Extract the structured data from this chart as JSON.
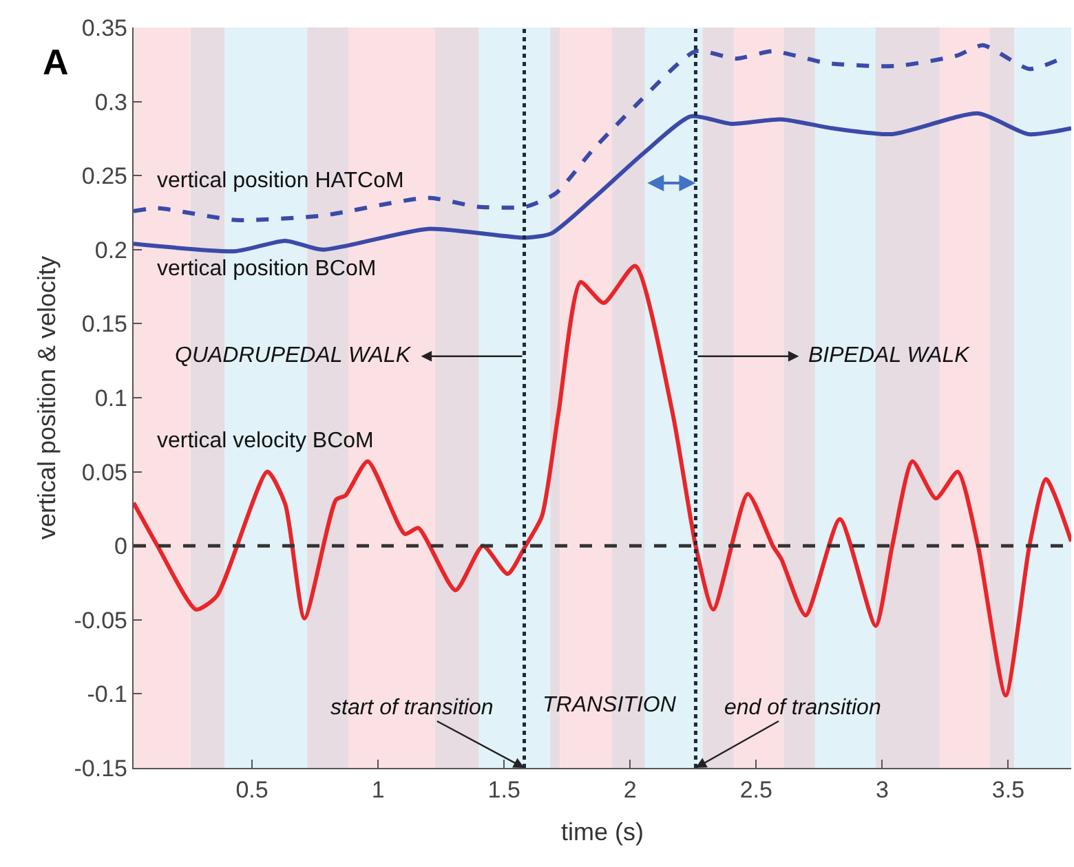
{
  "chart_data": {
    "type": "line",
    "xlabel": "time (s)",
    "ylabel": "vertical position & velocity",
    "xlim": [
      0.03,
      3.75
    ],
    "ylim": [
      -0.15,
      0.35
    ],
    "xticks": [
      0.5,
      1,
      1.5,
      2,
      2.5,
      3,
      3.5
    ],
    "yticks": [
      -0.15,
      -0.1,
      -0.05,
      0,
      0.05,
      0.1,
      0.15,
      0.2,
      0.25,
      0.3,
      0.35
    ],
    "series": [
      {
        "name": "vertical position HATCoM",
        "color": "#3b4aa8",
        "line_style": "dashed",
        "x": [
          0.03,
          0.125,
          0.436,
          0.779,
          1.198,
          1.394,
          1.585,
          1.705,
          1.85,
          2.02,
          2.26,
          2.42,
          2.566,
          2.78,
          3.055,
          3.295,
          3.4,
          3.584,
          3.71
        ],
        "values": [
          0.226,
          0.228,
          0.22,
          0.223,
          0.235,
          0.229,
          0.229,
          0.238,
          0.267,
          0.297,
          0.334,
          0.329,
          0.334,
          0.326,
          0.324,
          0.331,
          0.338,
          0.322,
          0.329
        ]
      },
      {
        "name": "vertical position BCoM",
        "color": "#3b4aa8",
        "line_style": "solid",
        "x": [
          0.03,
          0.436,
          0.632,
          0.779,
          1.198,
          1.585,
          1.688,
          1.85,
          2.059,
          2.24,
          2.4,
          2.6,
          2.8,
          3.04,
          3.38,
          3.58,
          3.75
        ],
        "values": [
          0.204,
          0.199,
          0.206,
          0.2,
          0.214,
          0.208,
          0.211,
          0.234,
          0.266,
          0.29,
          0.285,
          0.288,
          0.282,
          0.278,
          0.292,
          0.278,
          0.282
        ]
      },
      {
        "name": "vertical velocity BCoM",
        "color": "#e8262a",
        "line_style": "solid",
        "x": [
          0.03,
          0.125,
          0.278,
          0.36,
          0.561,
          0.632,
          0.708,
          0.833,
          0.871,
          0.959,
          1.106,
          1.16,
          1.307,
          1.416,
          1.514,
          1.585,
          1.65,
          1.716,
          1.803,
          1.895,
          2.02,
          2.168,
          2.26,
          2.33,
          2.467,
          2.566,
          2.6,
          2.696,
          2.832,
          2.974,
          3.04,
          3.12,
          3.213,
          3.3,
          3.38,
          3.49,
          3.584,
          3.65,
          3.75
        ],
        "values": [
          0.029,
          0,
          -0.043,
          -0.034,
          0.05,
          0.028,
          -0.049,
          0.031,
          0.034,
          0.057,
          0.008,
          0.012,
          -0.03,
          0,
          -0.019,
          0,
          0.02,
          0.09,
          0.178,
          0.164,
          0.189,
          0.09,
          0,
          -0.043,
          0.035,
          0,
          -0.009,
          -0.047,
          0.018,
          -0.054,
          0,
          0.057,
          0.032,
          0.05,
          0,
          -0.101,
          0,
          0.045,
          0.003
        ]
      }
    ],
    "ref_lines": [
      {
        "axis": "x",
        "value": 1.58,
        "color": "#1e2b3a",
        "line_style": "dotted"
      },
      {
        "axis": "x",
        "value": 2.26,
        "color": "#1e2b3a",
        "line_style": "dotted"
      },
      {
        "axis": "y",
        "value": 0,
        "color": "#333333",
        "line_style": "dashed"
      }
    ],
    "bands": [
      {
        "axis": "x",
        "from": 0.03,
        "to": 0.256,
        "color": "#fbe1e4"
      },
      {
        "axis": "x",
        "from": 0.256,
        "to": 0.392,
        "color": "#e6dce2"
      },
      {
        "axis": "x",
        "from": 0.392,
        "to": 0.719,
        "color": "#e1f2f8"
      },
      {
        "axis": "x",
        "from": 0.719,
        "to": 0.882,
        "color": "#e6dce2"
      },
      {
        "axis": "x",
        "from": 0.882,
        "to": 1.225,
        "color": "#fbe1e4"
      },
      {
        "axis": "x",
        "from": 1.225,
        "to": 1.4,
        "color": "#e6dce2"
      },
      {
        "axis": "x",
        "from": 1.4,
        "to": 1.683,
        "color": "#e1f2f8"
      },
      {
        "axis": "x",
        "from": 1.683,
        "to": 1.721,
        "color": "#e6dce2"
      },
      {
        "axis": "x",
        "from": 1.721,
        "to": 1.928,
        "color": "#fbe1e4"
      },
      {
        "axis": "x",
        "from": 1.928,
        "to": 2.059,
        "color": "#e6dce2"
      },
      {
        "axis": "x",
        "from": 2.059,
        "to": 2.288,
        "color": "#e1f2f8"
      },
      {
        "axis": "x",
        "from": 2.288,
        "to": 2.413,
        "color": "#e6dce2"
      },
      {
        "axis": "x",
        "from": 2.413,
        "to": 2.609,
        "color": "#fbe1e4"
      },
      {
        "axis": "x",
        "from": 2.609,
        "to": 2.734,
        "color": "#e6dce2"
      },
      {
        "axis": "x",
        "from": 2.734,
        "to": 2.974,
        "color": "#e1f2f8"
      },
      {
        "axis": "x",
        "from": 2.974,
        "to": 3.23,
        "color": "#e6dce2"
      },
      {
        "axis": "x",
        "from": 3.23,
        "to": 3.426,
        "color": "#fbe1e4"
      },
      {
        "axis": "x",
        "from": 3.426,
        "to": 3.524,
        "color": "#e6dce2"
      },
      {
        "axis": "x",
        "from": 3.524,
        "to": 3.75,
        "color": "#e1f2f8"
      }
    ],
    "annotations": [
      "A",
      {
        "text": "QUADRUPEDAL WALK",
        "x": 1.58,
        "y": 0.128
      },
      {
        "text": "BIPEDAL WALK",
        "x": 2.26,
        "y": 0.128
      },
      {
        "text": "start of transition",
        "x": 1.58,
        "y": -0.15
      },
      {
        "text": "TRANSITION",
        "x": 1.92,
        "y": -0.108
      },
      {
        "text": "end of transition",
        "x": 2.26,
        "y": -0.15
      }
    ]
  }
}
